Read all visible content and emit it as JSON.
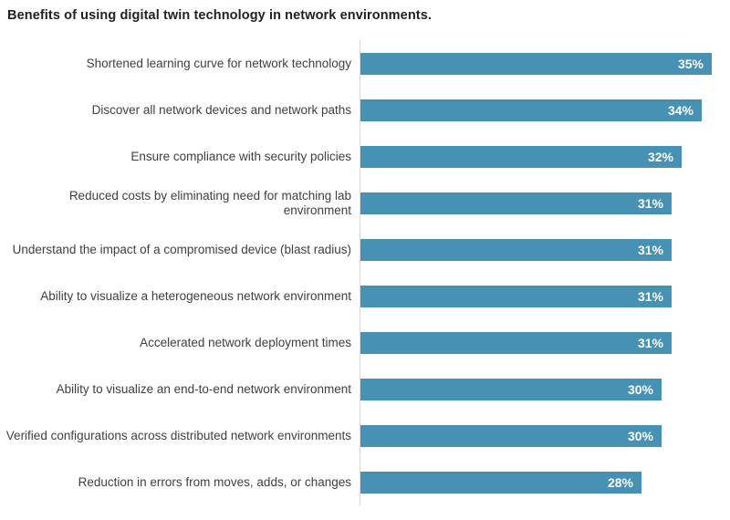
{
  "title": "Benefits of using digital twin technology in network environments.",
  "colors": {
    "bar": "#4792b4",
    "axis_line": "#d9d9d9",
    "value_label": "#ffffff",
    "category_label": "#3f3f3f",
    "title": "#212121",
    "background": "#ffffff"
  },
  "chart_data": {
    "type": "bar",
    "orientation": "horizontal",
    "title": "Benefits of using digital twin technology in network environments.",
    "categories": [
      "Shortened learning curve for network technology",
      "Discover all network devices and network paths",
      "Ensure compliance with security policies",
      "Reduced costs by eliminating need for matching lab environment",
      "Understand the impact of a compromised device (blast radius)",
      "Ability to visualize a heterogeneous network environment",
      "Accelerated network deployment times",
      "Ability to visualize an end-to-end network environment",
      "Verified configurations across distributed network environments",
      "Reduction in errors from moves, adds, or changes"
    ],
    "values": [
      35,
      34,
      32,
      31,
      31,
      31,
      31,
      30,
      30,
      28
    ],
    "value_labels": [
      "35%",
      "34%",
      "32%",
      "31%",
      "31%",
      "31%",
      "31%",
      "30%",
      "30%",
      "28%"
    ],
    "xlabel": "",
    "ylabel": "",
    "xlim": [
      0,
      36
    ],
    "grid": false,
    "legend": false,
    "value_labels_position": "inside-end"
  }
}
